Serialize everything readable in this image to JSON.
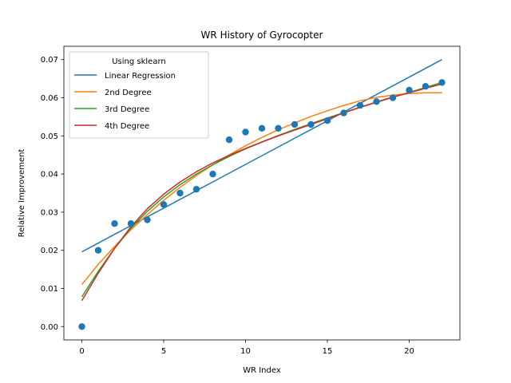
{
  "chart_data": {
    "type": "scatter",
    "title": "WR History of Gyrocopter",
    "xlabel": "WR Index",
    "ylabel": "Relative Improvement",
    "xlim": [
      -1.1,
      23.1
    ],
    "ylim": [
      -0.0035,
      0.0735
    ],
    "xticks": [
      0,
      5,
      10,
      15,
      20
    ],
    "yticks": [
      0.0,
      0.01,
      0.02,
      0.03,
      0.04,
      0.05,
      0.06,
      0.07
    ],
    "xtick_labels": [
      "0",
      "5",
      "10",
      "15",
      "20"
    ],
    "ytick_labels": [
      "0.00",
      "0.01",
      "0.02",
      "0.03",
      "0.04",
      "0.05",
      "0.06",
      "0.07"
    ],
    "grid": false,
    "legend": {
      "title": "Using sklearn",
      "placement": "top-left",
      "entries": [
        "Linear Regression",
        "2nd Degree",
        "3rd Degree",
        "4th Degree"
      ]
    },
    "scatter": {
      "color": "#1f77b4",
      "x": [
        0,
        1,
        2,
        3,
        4,
        5,
        6,
        7,
        8,
        9,
        10,
        11,
        12,
        13,
        14,
        15,
        16,
        17,
        18,
        19,
        20,
        21,
        22
      ],
      "y": [
        0.0,
        0.02,
        0.027,
        0.027,
        0.028,
        0.032,
        0.035,
        0.036,
        0.04,
        0.049,
        0.051,
        0.052,
        0.052,
        0.053,
        0.053,
        0.054,
        0.056,
        0.058,
        0.059,
        0.06,
        0.062,
        0.063,
        0.064
      ]
    },
    "series": [
      {
        "name": "Linear Regression",
        "color": "#1f77b4",
        "x": [
          0,
          22
        ],
        "y": [
          0.0196,
          0.07
        ]
      },
      {
        "name": "2nd Degree",
        "color": "#ff7f0e",
        "x": [
          0,
          1,
          2,
          3,
          4,
          5,
          6,
          7,
          8,
          9,
          10,
          11,
          12,
          13,
          14,
          15,
          16,
          17,
          18,
          19,
          20,
          21,
          22
        ],
        "y": [
          0.011,
          0.0163,
          0.021,
          0.0254,
          0.0294,
          0.0331,
          0.0365,
          0.0396,
          0.0424,
          0.045,
          0.0474,
          0.0496,
          0.0516,
          0.0534,
          0.0551,
          0.0566,
          0.058,
          0.0592,
          0.0601,
          0.0607,
          0.0611,
          0.0613,
          0.0613
        ]
      },
      {
        "name": "3rd Degree",
        "color": "#2ca02c",
        "x": [
          0,
          1,
          2,
          3,
          4,
          5,
          6,
          7,
          8,
          9,
          10,
          11,
          12,
          13,
          14,
          15,
          16,
          17,
          18,
          19,
          20,
          21,
          22
        ],
        "y": [
          0.0078,
          0.0145,
          0.0205,
          0.0258,
          0.0302,
          0.034,
          0.0372,
          0.04,
          0.0424,
          0.0446,
          0.0466,
          0.0484,
          0.0501,
          0.0517,
          0.0532,
          0.0547,
          0.0561,
          0.0575,
          0.0588,
          0.0601,
          0.0614,
          0.0627,
          0.064
        ]
      },
      {
        "name": "4th Degree",
        "color": "#d62728",
        "x": [
          0,
          1,
          2,
          3,
          4,
          5,
          6,
          7,
          8,
          9,
          10,
          11,
          12,
          13,
          14,
          15,
          16,
          17,
          18,
          19,
          20,
          21,
          22
        ],
        "y": [
          0.0068,
          0.014,
          0.0205,
          0.0262,
          0.0309,
          0.0347,
          0.0379,
          0.0406,
          0.0429,
          0.0449,
          0.0467,
          0.0484,
          0.05,
          0.0515,
          0.053,
          0.0545,
          0.056,
          0.0575,
          0.0589,
          0.0602,
          0.0613,
          0.0625,
          0.0636
        ]
      }
    ]
  }
}
